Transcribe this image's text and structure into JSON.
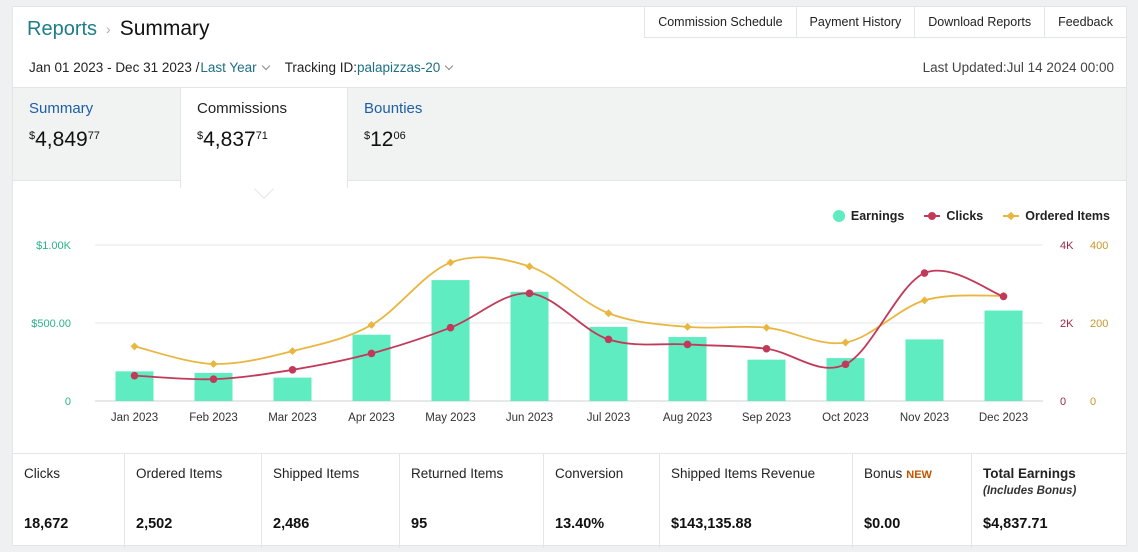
{
  "breadcrumb": {
    "parent": "Reports",
    "current": "Summary"
  },
  "toplinks": [
    "Commission Schedule",
    "Payment History",
    "Download Reports",
    "Feedback"
  ],
  "filters": {
    "date_range": "Jan 01 2023 - Dec 31 2023 /",
    "period": "Last Year",
    "tracking_label": "Tracking ID:",
    "tracking_id": "palapizzas-20"
  },
  "last_updated": "Last Updated:Jul 14 2024 00:00",
  "tabs": [
    {
      "label": "Summary",
      "currency": "$",
      "dollars": "4,849",
      "cents": "77"
    },
    {
      "label": "Commissions",
      "currency": "$",
      "dollars": "4,837",
      "cents": "71"
    },
    {
      "label": "Bounties",
      "currency": "$",
      "dollars": "12",
      "cents": "06"
    }
  ],
  "legend": {
    "earnings": "Earnings",
    "clicks": "Clicks",
    "ordered": "Ordered Items"
  },
  "colors": {
    "earnings": "#5eecc0",
    "clicks": "#c23a5a",
    "ordered": "#e9b741",
    "link": "#1d7d8a",
    "new": "#c45500"
  },
  "chart_data": {
    "type": "bar",
    "categories": [
      "Jan 2023",
      "Feb 2023",
      "Mar 2023",
      "Apr 2023",
      "May 2023",
      "Jun 2023",
      "Jul 2023",
      "Aug 2023",
      "Sep 2023",
      "Oct 2023",
      "Nov 2023",
      "Dec 2023"
    ],
    "series": [
      {
        "name": "Earnings",
        "type": "bar",
        "axis": "left",
        "values": [
          190,
          180,
          150,
          425,
          775,
          700,
          475,
          410,
          265,
          275,
          395,
          580
        ]
      },
      {
        "name": "Clicks",
        "type": "line",
        "axis": "right1",
        "values": [
          650,
          560,
          800,
          1220,
          1880,
          2760,
          1580,
          1450,
          1340,
          940,
          3280,
          2680
        ]
      },
      {
        "name": "Ordered Items",
        "type": "line",
        "axis": "right2",
        "values": [
          140,
          95,
          128,
          195,
          355,
          345,
          225,
          190,
          188,
          150,
          258,
          270
        ]
      }
    ],
    "left_axis": {
      "ticks": [
        "$1.00K",
        "$500.00",
        "0"
      ],
      "range": [
        0,
        1000
      ]
    },
    "right1_axis": {
      "ticks": [
        "4K",
        "2K",
        "0"
      ],
      "range": [
        0,
        4000
      ]
    },
    "right2_axis": {
      "ticks": [
        "400",
        "200",
        "0"
      ],
      "range": [
        0,
        400
      ]
    },
    "legend_position": "top-right",
    "grid": true
  },
  "stats": [
    {
      "label": "Clicks",
      "value": "18,672"
    },
    {
      "label": "Ordered Items",
      "value": "2,502"
    },
    {
      "label": "Shipped Items",
      "value": "2,486"
    },
    {
      "label": "Returned Items",
      "value": "95"
    },
    {
      "label": "Conversion",
      "value": "13.40%"
    },
    {
      "label": "Shipped Items Revenue",
      "value": "$143,135.88"
    },
    {
      "label": "Bonus",
      "badge": "NEW",
      "value": "$0.00"
    },
    {
      "label": "Total Earnings",
      "sub": "(Includes Bonus)",
      "value": "$4,837.71"
    }
  ]
}
